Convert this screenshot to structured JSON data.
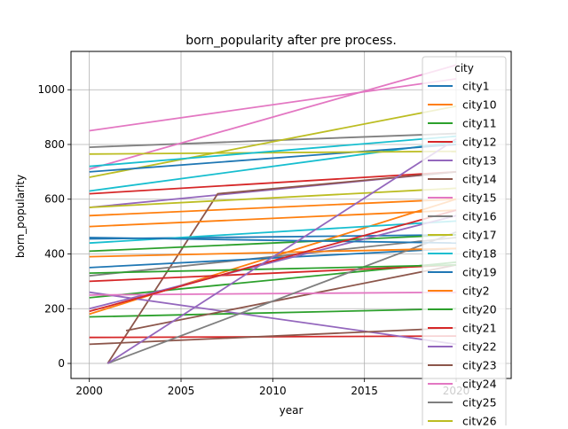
{
  "chart_data": {
    "type": "line",
    "title": "born_popularity after pre process.",
    "xlabel": "year",
    "ylabel": "born_popularity",
    "xlim": [
      1999,
      2023
    ],
    "ylim": [
      -55,
      1140
    ],
    "xticks": [
      2000,
      2005,
      2010,
      2015,
      2020
    ],
    "yticks": [
      0,
      200,
      400,
      600,
      800,
      1000
    ],
    "grid": true,
    "legend": {
      "title": "city",
      "placement": "right, clipped at bottom",
      "entries": [
        "city1",
        "city10",
        "city11",
        "city12",
        "city13",
        "city14",
        "city15",
        "city16",
        "city17",
        "city18",
        "city19",
        "city2",
        "city20",
        "city21",
        "city22",
        "city23",
        "city24",
        "city25",
        "city26"
      ]
    },
    "colors": [
      "#1f77b4",
      "#ff7f0e",
      "#2ca02c",
      "#d62728",
      "#9467bd",
      "#8c564b",
      "#e377c2",
      "#7f7f7f",
      "#bcbd22",
      "#17becf"
    ],
    "series": [
      {
        "name": "city1",
        "x": [
          2000,
          2020
        ],
        "y": [
          455,
          470
        ]
      },
      {
        "name": "city10",
        "x": [
          2000,
          2020
        ],
        "y": [
          540,
          600
        ]
      },
      {
        "name": "city11",
        "x": [
          2000,
          2020
        ],
        "y": [
          170,
          200
        ]
      },
      {
        "name": "city12",
        "x": [
          2000,
          2020
        ],
        "y": [
          620,
          700
        ]
      },
      {
        "name": "city13",
        "x": [
          2000,
          2020
        ],
        "y": [
          570,
          700
        ]
      },
      {
        "name": "city14",
        "x": [
          2001,
          2007,
          2020
        ],
        "y": [
          0,
          620,
          700
        ]
      },
      {
        "name": "city15",
        "x": [
          2000,
          2020
        ],
        "y": [
          850,
          1040
        ]
      },
      {
        "name": "city16",
        "x": [
          2000,
          2020
        ],
        "y": [
          790,
          840
        ]
      },
      {
        "name": "city17",
        "x": [
          2000,
          2020
        ],
        "y": [
          680,
          940
        ]
      },
      {
        "name": "city18",
        "x": [
          2000,
          2020
        ],
        "y": [
          630,
          810
        ]
      },
      {
        "name": "city19",
        "x": [
          2000,
          2020
        ],
        "y": [
          700,
          800
        ]
      },
      {
        "name": "city2",
        "x": [
          2000,
          2020
        ],
        "y": [
          180,
          600
        ]
      },
      {
        "name": "city20",
        "x": [
          2000,
          2020
        ],
        "y": [
          240,
          370
        ]
      },
      {
        "name": "city21",
        "x": [
          2000,
          2020
        ],
        "y": [
          95,
          100
        ]
      },
      {
        "name": "city22",
        "x": [
          2000,
          2020
        ],
        "y": [
          260,
          70
        ]
      },
      {
        "name": "city23",
        "x": [
          2000,
          2020
        ],
        "y": [
          70,
          130
        ]
      },
      {
        "name": "city24",
        "x": [
          2000,
          2020
        ],
        "y": [
          710,
          1090
        ]
      },
      {
        "name": "city25",
        "x": [
          2000,
          2020
        ],
        "y": [
          320,
          460
        ]
      },
      {
        "name": "city26",
        "x": [
          2000,
          2020
        ],
        "y": [
          765,
          775
        ]
      },
      {
        "name": "",
        "x": [
          2000,
          2020
        ],
        "y": [
          440,
          520
        ]
      },
      {
        "name": "",
        "x": [
          2000,
          2020
        ],
        "y": [
          350,
          420
        ]
      },
      {
        "name": "",
        "x": [
          2000,
          2020
        ],
        "y": [
          500,
          560
        ]
      },
      {
        "name": "",
        "x": [
          2000,
          2020
        ],
        "y": [
          410,
          470
        ]
      },
      {
        "name": "",
        "x": [
          2000,
          2020
        ],
        "y": [
          300,
          360
        ]
      },
      {
        "name": "",
        "x": [
          2000,
          2020
        ],
        "y": [
          200,
          540
        ]
      },
      {
        "name": "",
        "x": [
          2002,
          2020
        ],
        "y": [
          120,
          360
        ]
      },
      {
        "name": "",
        "x": [
          2000,
          2020
        ],
        "y": [
          250,
          260
        ]
      },
      {
        "name": "",
        "x": [
          2001,
          2020
        ],
        "y": [
          0,
          480
        ]
      },
      {
        "name": "",
        "x": [
          2000,
          2020
        ],
        "y": [
          570,
          640
        ]
      },
      {
        "name": "",
        "x": [
          2000,
          2020
        ],
        "y": [
          720,
          830
        ]
      },
      {
        "name": "",
        "x": [
          2000,
          2020
        ],
        "y": [
          460,
          440
        ]
      },
      {
        "name": "",
        "x": [
          2000,
          2020
        ],
        "y": [
          390,
          420
        ]
      },
      {
        "name": "",
        "x": [
          2000,
          2020
        ],
        "y": [
          330,
          360
        ]
      },
      {
        "name": "",
        "x": [
          2000,
          2020
        ],
        "y": [
          190,
          560
        ]
      },
      {
        "name": "",
        "x": [
          2001,
          2020
        ],
        "y": [
          0,
          820
        ]
      }
    ]
  }
}
